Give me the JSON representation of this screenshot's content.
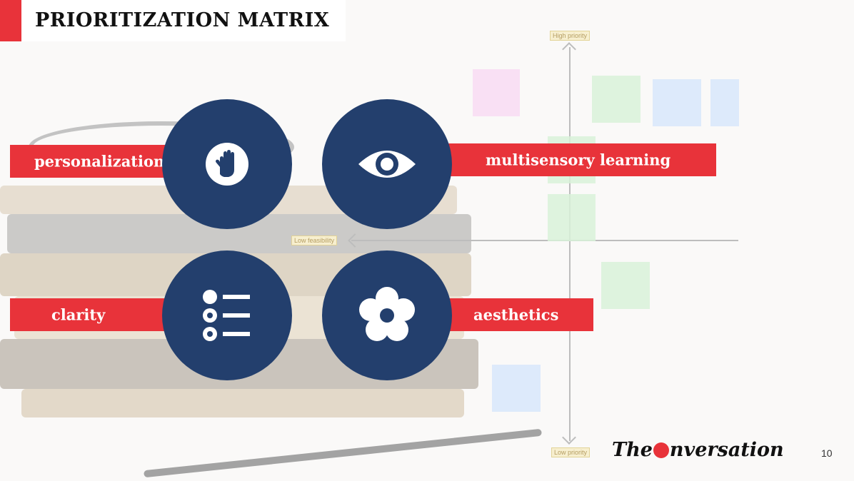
{
  "slide": {
    "title": "PRIORITIZATION MATRIX",
    "page_number": "10",
    "logo_text_before": "The",
    "logo_text_after": "nversation"
  },
  "matrix": {
    "top_label": "High priority",
    "bottom_label": "Low priority",
    "left_label": "Low feasibility"
  },
  "quadrants": [
    {
      "label": "personalization",
      "icon": "raised-hand-icon"
    },
    {
      "label": "multisensory learning",
      "icon": "eye-icon"
    },
    {
      "label": "clarity",
      "icon": "bullet-list-icon"
    },
    {
      "label": "aesthetics",
      "icon": "flower-icon"
    }
  ],
  "colors": {
    "accent_red": "#e8333a",
    "circle_navy": "#233f6d",
    "title_bg": "#ffffff"
  }
}
